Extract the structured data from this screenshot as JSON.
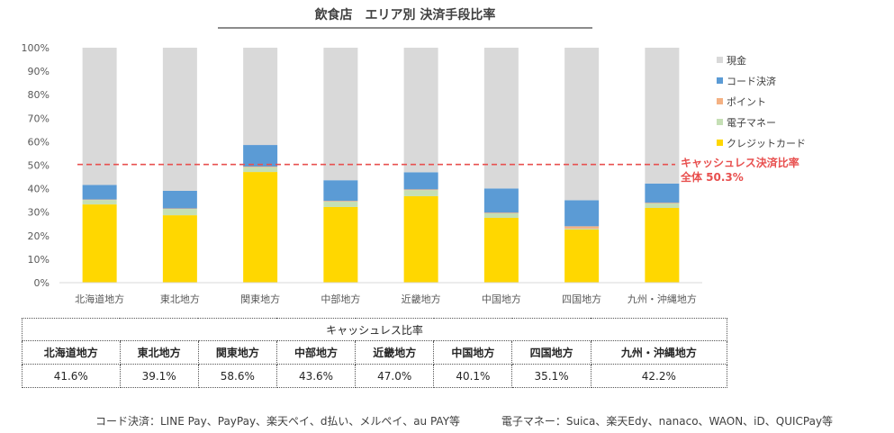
{
  "chart_data": {
    "type": "bar",
    "stacked": true,
    "title": "飲食店　エリア別 決済手段比率",
    "xlabel": "",
    "ylabel": "",
    "ylim": [
      0,
      100
    ],
    "yticks": [
      "0%",
      "10%",
      "20%",
      "30%",
      "40%",
      "50%",
      "60%",
      "70%",
      "80%",
      "90%",
      "100%"
    ],
    "grid": false,
    "legend_position": "right",
    "categories": [
      "北海道地方",
      "東北地方",
      "関東地方",
      "中部地方",
      "近畿地方",
      "中国地方",
      "四国地方",
      "九州・沖縄地方"
    ],
    "series": [
      {
        "name": "クレジットカード",
        "color": "#ffd700",
        "values": [
          33.3,
          28.7,
          47.1,
          32.2,
          36.8,
          27.6,
          22.6,
          31.8
        ]
      },
      {
        "name": "電子マネー",
        "color": "#c5dfb5",
        "values": [
          1.9,
          2.7,
          2.0,
          2.3,
          2.6,
          1.9,
          0.4,
          1.9
        ]
      },
      {
        "name": "ポイント",
        "color": "#f4b183",
        "values": [
          0.2,
          0.2,
          0.3,
          0.3,
          0.3,
          0.3,
          1.0,
          0.3
        ]
      },
      {
        "name": "コード決済",
        "color": "#5b9bd5",
        "values": [
          6.2,
          7.5,
          9.2,
          8.8,
          7.3,
          10.3,
          11.1,
          8.2
        ]
      },
      {
        "name": "現金",
        "color": "#d9d9d9",
        "values": [
          58.4,
          60.9,
          41.4,
          56.4,
          53.0,
          59.9,
          64.9,
          57.8
        ]
      }
    ],
    "legend_order": [
      "現金",
      "コード決済",
      "ポイント",
      "電子マネー",
      "クレジットカード"
    ],
    "reference_line": {
      "value": 50.3,
      "color": "#e8504f",
      "style": "dashed"
    },
    "annotation": [
      "キャッシュレス決済比率",
      "全体 50.3%"
    ]
  },
  "table": {
    "title": "キャッシュレス比率",
    "headers": [
      "北海道地方",
      "東北地方",
      "関東地方",
      "中部地方",
      "近畿地方",
      "中国地方",
      "四国地方",
      "九州・沖縄地方"
    ],
    "values": [
      "41.6%",
      "39.1%",
      "58.6%",
      "43.6%",
      "47.0%",
      "40.1%",
      "35.1%",
      "42.2%"
    ]
  },
  "footnotes": [
    "コード決済：LINE Pay、PayPay、楽天ペイ、d払い、メルペイ、au PAY等",
    "電子マネー：Suica、楽天Edy、nanaco、WAON、iD、QUICPay等"
  ]
}
